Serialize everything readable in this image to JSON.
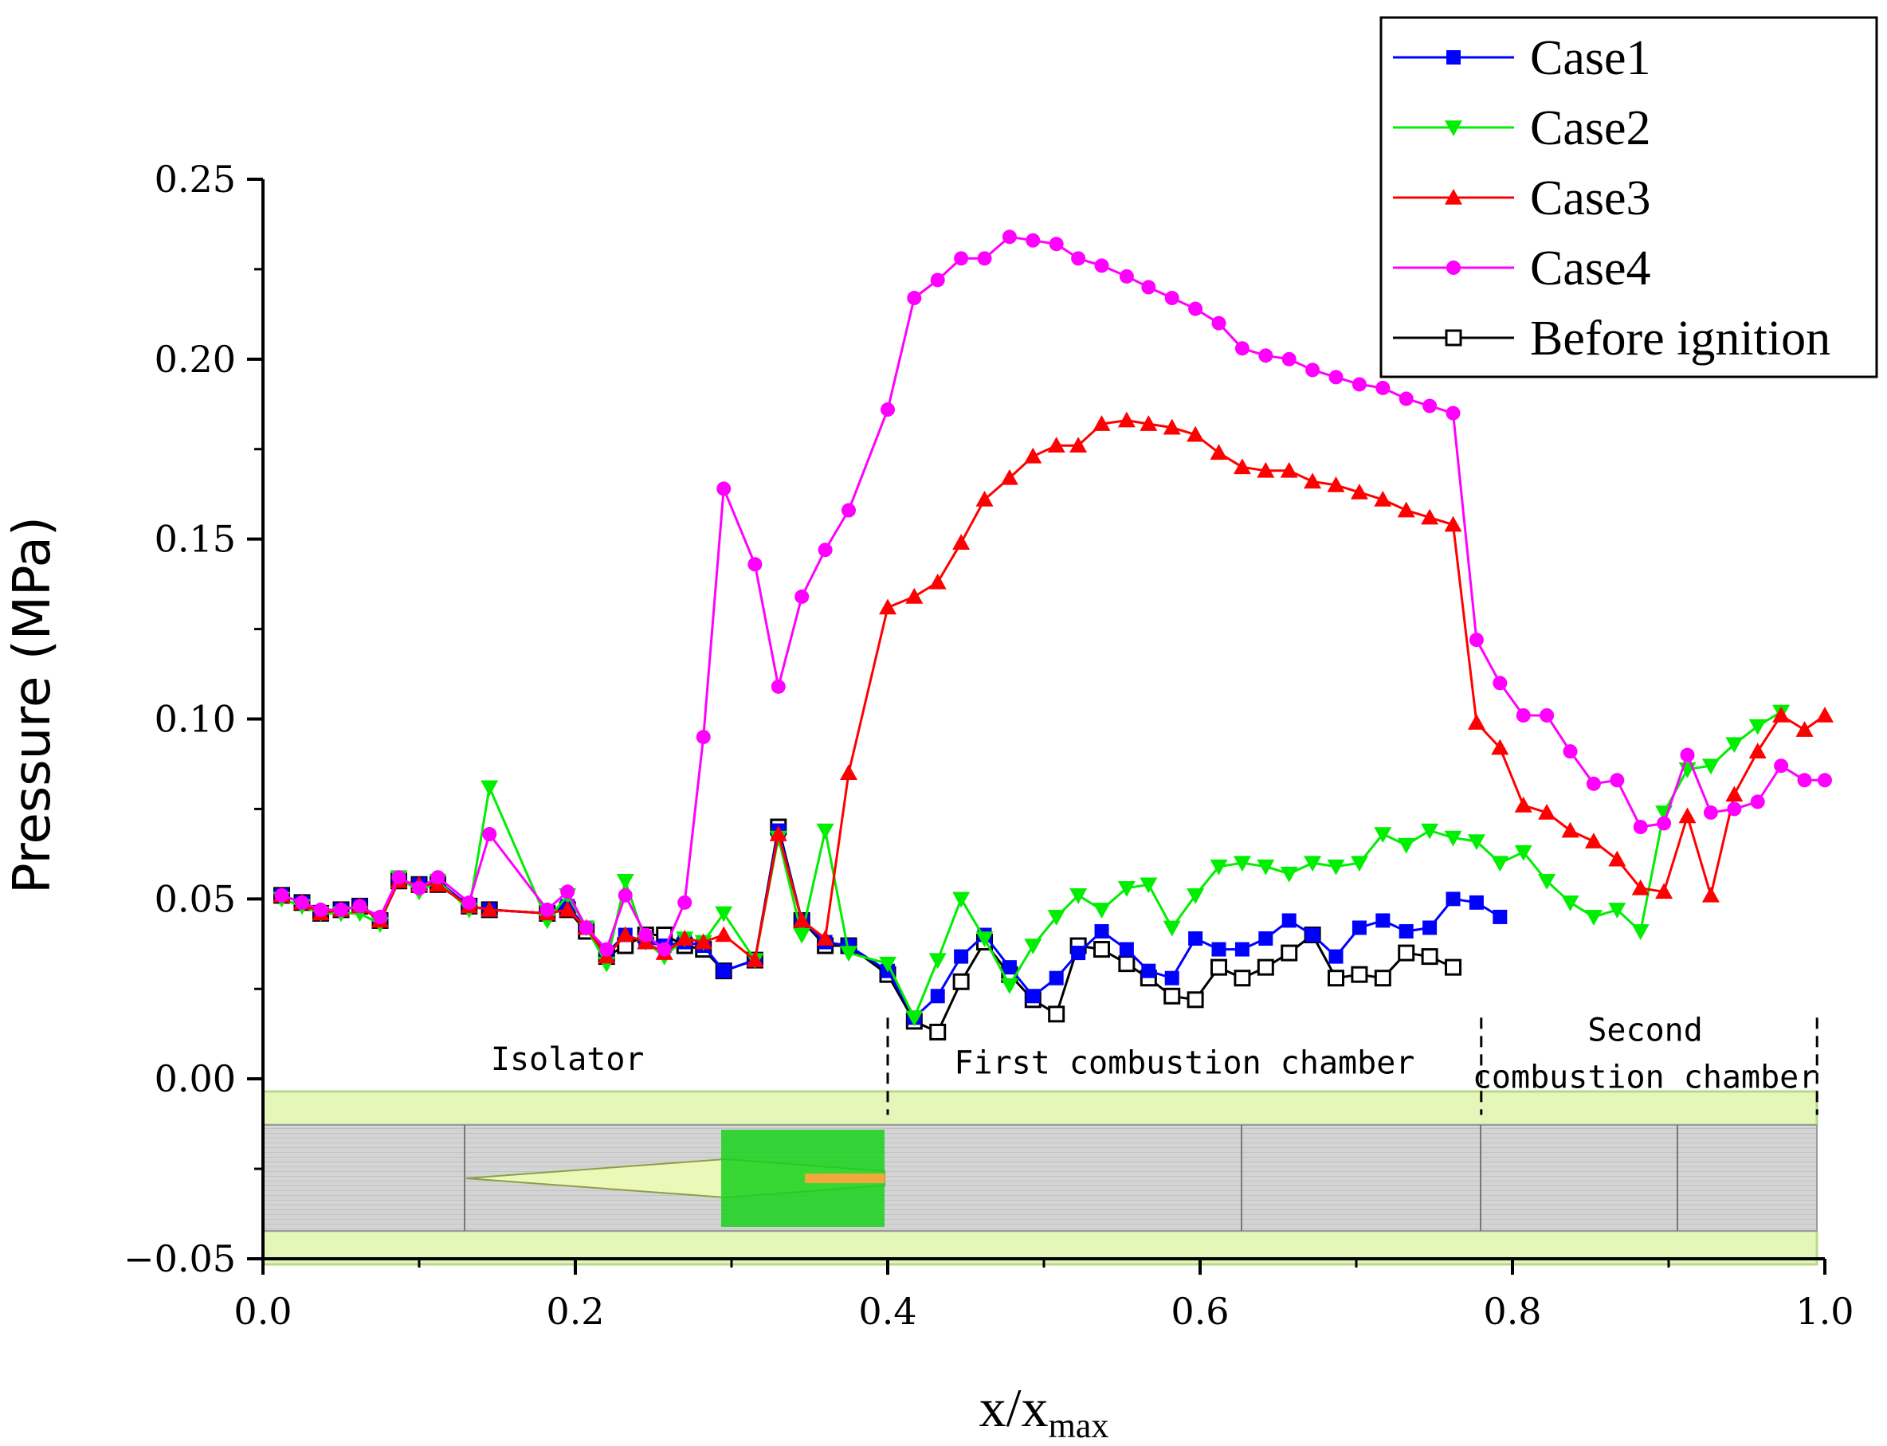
{
  "chart_data": {
    "type": "line",
    "title": "",
    "xlabel": "x/x",
    "xlabel_subscript": "max",
    "ylabel": "Pressure (MPa)",
    "xlim": [
      0.0,
      1.0
    ],
    "ylim": [
      -0.05,
      0.25
    ],
    "x_ticks": [
      0.0,
      0.2,
      0.4,
      0.6,
      0.8,
      1.0
    ],
    "x_tick_labels": [
      "0.0",
      "0.2",
      "0.4",
      "0.6",
      "0.8",
      "1.0"
    ],
    "y_ticks": [
      -0.05,
      0.0,
      0.05,
      0.1,
      0.15,
      0.2,
      0.25
    ],
    "y_tick_labels": [
      "−0.05",
      "0.00",
      "0.05",
      "0.10",
      "0.15",
      "0.20",
      "0.25"
    ],
    "legend_position": "top-right",
    "section_boundaries": [
      0.4,
      0.78,
      0.995
    ],
    "section_labels": [
      {
        "text": "Isolator",
        "x": 0.195,
        "y": 0.0025
      },
      {
        "text": "First combustion chamber",
        "x": 0.59,
        "y": 0.0015
      },
      {
        "text": "Second",
        "x": 0.885,
        "y": 0.0105
      },
      {
        "text": "combustion chamber",
        "x": 0.885,
        "y": -0.0025
      }
    ],
    "series": [
      {
        "name": "Before ignition",
        "color": "#000000",
        "marker": "open-square",
        "x": [
          0.012,
          0.025,
          0.037,
          0.05,
          0.062,
          0.075,
          0.087,
          0.1,
          0.112,
          0.132,
          0.145,
          0.182,
          0.195,
          0.207,
          0.22,
          0.232,
          0.245,
          0.257,
          0.27,
          0.282,
          0.295,
          0.315,
          0.33,
          0.345,
          0.36,
          0.375,
          0.4,
          0.417,
          0.432,
          0.447,
          0.462,
          0.478,
          0.493,
          0.508,
          0.522,
          0.537,
          0.553,
          0.567,
          0.582,
          0.597,
          0.612,
          0.627,
          0.642,
          0.657,
          0.672,
          0.687,
          0.702,
          0.717,
          0.732,
          0.747,
          0.762
        ],
        "values": [
          0.051,
          0.049,
          0.046,
          0.047,
          0.048,
          0.044,
          0.055,
          0.054,
          0.054,
          0.048,
          0.047,
          0.046,
          0.047,
          0.041,
          0.034,
          0.037,
          0.04,
          0.04,
          0.037,
          0.036,
          0.03,
          0.033,
          0.07,
          0.044,
          0.037,
          0.037,
          0.029,
          0.016,
          0.013,
          0.027,
          0.038,
          0.029,
          0.022,
          0.018,
          0.037,
          0.036,
          0.032,
          0.028,
          0.023,
          0.022,
          0.031,
          0.028,
          0.031,
          0.035,
          0.04,
          0.028,
          0.029,
          0.028,
          0.035,
          0.034,
          0.031
        ]
      },
      {
        "name": "Case1",
        "color": "#0000ff",
        "marker": "square",
        "x": [
          0.012,
          0.025,
          0.037,
          0.05,
          0.062,
          0.075,
          0.087,
          0.1,
          0.112,
          0.132,
          0.145,
          0.182,
          0.195,
          0.207,
          0.22,
          0.232,
          0.245,
          0.257,
          0.27,
          0.282,
          0.295,
          0.315,
          0.33,
          0.345,
          0.36,
          0.375,
          0.4,
          0.417,
          0.432,
          0.447,
          0.462,
          0.478,
          0.493,
          0.508,
          0.522,
          0.537,
          0.553,
          0.567,
          0.582,
          0.597,
          0.612,
          0.627,
          0.642,
          0.657,
          0.672,
          0.687,
          0.702,
          0.717,
          0.732,
          0.747,
          0.762,
          0.777,
          0.792
        ],
        "values": [
          0.051,
          0.049,
          0.046,
          0.047,
          0.048,
          0.044,
          0.055,
          0.054,
          0.055,
          0.048,
          0.047,
          0.046,
          0.048,
          0.042,
          0.035,
          0.04,
          0.038,
          0.037,
          0.038,
          0.037,
          0.03,
          0.033,
          0.069,
          0.044,
          0.038,
          0.037,
          0.03,
          0.017,
          0.023,
          0.034,
          0.04,
          0.031,
          0.023,
          0.028,
          0.035,
          0.041,
          0.036,
          0.03,
          0.028,
          0.039,
          0.036,
          0.036,
          0.039,
          0.044,
          0.04,
          0.034,
          0.042,
          0.044,
          0.041,
          0.042,
          0.05,
          0.049,
          0.045
        ]
      },
      {
        "name": "Case2",
        "color": "#00ee00",
        "marker": "triangle-down",
        "x": [
          0.012,
          0.025,
          0.037,
          0.05,
          0.062,
          0.075,
          0.087,
          0.1,
          0.112,
          0.132,
          0.145,
          0.182,
          0.195,
          0.207,
          0.22,
          0.232,
          0.245,
          0.257,
          0.27,
          0.282,
          0.295,
          0.315,
          0.33,
          0.345,
          0.36,
          0.375,
          0.4,
          0.417,
          0.432,
          0.447,
          0.462,
          0.478,
          0.493,
          0.508,
          0.522,
          0.537,
          0.553,
          0.567,
          0.582,
          0.597,
          0.612,
          0.627,
          0.642,
          0.657,
          0.672,
          0.687,
          0.702,
          0.717,
          0.732,
          0.747,
          0.762,
          0.777,
          0.792,
          0.807,
          0.822,
          0.837,
          0.852,
          0.867,
          0.882,
          0.897,
          0.912,
          0.927,
          0.942,
          0.957,
          0.972
        ],
        "values": [
          0.05,
          0.048,
          0.046,
          0.046,
          0.046,
          0.043,
          0.056,
          0.052,
          0.055,
          0.047,
          0.081,
          0.044,
          0.051,
          0.042,
          0.032,
          0.055,
          0.038,
          0.034,
          0.039,
          0.038,
          0.046,
          0.033,
          0.067,
          0.04,
          0.069,
          0.035,
          0.032,
          0.017,
          0.033,
          0.05,
          0.039,
          0.026,
          0.037,
          0.045,
          0.051,
          0.047,
          0.053,
          0.054,
          0.042,
          0.051,
          0.059,
          0.06,
          0.059,
          0.057,
          0.06,
          0.059,
          0.06,
          0.068,
          0.065,
          0.069,
          0.067,
          0.066,
          0.06,
          0.063,
          0.055,
          0.049,
          0.045,
          0.047,
          0.041,
          0.074,
          0.086,
          0.087,
          0.093,
          0.098,
          0.102
        ]
      },
      {
        "name": "Case3",
        "color": "#ff0000",
        "marker": "triangle-up",
        "x": [
          0.012,
          0.025,
          0.037,
          0.05,
          0.062,
          0.075,
          0.087,
          0.1,
          0.112,
          0.132,
          0.145,
          0.182,
          0.195,
          0.207,
          0.22,
          0.232,
          0.245,
          0.257,
          0.27,
          0.282,
          0.295,
          0.315,
          0.33,
          0.345,
          0.36,
          0.375,
          0.4,
          0.417,
          0.432,
          0.447,
          0.462,
          0.478,
          0.493,
          0.508,
          0.522,
          0.537,
          0.553,
          0.567,
          0.582,
          0.597,
          0.612,
          0.627,
          0.642,
          0.657,
          0.672,
          0.687,
          0.702,
          0.717,
          0.732,
          0.747,
          0.762,
          0.777,
          0.792,
          0.807,
          0.822,
          0.837,
          0.852,
          0.867,
          0.882,
          0.897,
          0.912,
          0.927,
          0.942,
          0.957,
          0.972,
          0.987,
          1.0
        ],
        "values": [
          0.051,
          0.049,
          0.046,
          0.047,
          0.048,
          0.044,
          0.055,
          0.054,
          0.054,
          0.048,
          0.047,
          0.046,
          0.047,
          0.042,
          0.034,
          0.04,
          0.038,
          0.035,
          0.039,
          0.038,
          0.04,
          0.033,
          0.068,
          0.044,
          0.039,
          0.085,
          0.131,
          0.134,
          0.138,
          0.149,
          0.161,
          0.167,
          0.173,
          0.176,
          0.176,
          0.182,
          0.183,
          0.182,
          0.181,
          0.179,
          0.174,
          0.17,
          0.169,
          0.169,
          0.166,
          0.165,
          0.163,
          0.161,
          0.158,
          0.156,
          0.154,
          0.099,
          0.092,
          0.076,
          0.074,
          0.069,
          0.066,
          0.061,
          0.053,
          0.052,
          0.073,
          0.051,
          0.079,
          0.091,
          0.101,
          0.097,
          0.101
        ]
      },
      {
        "name": "Case4",
        "color": "#ff00ff",
        "marker": "circle",
        "x": [
          0.012,
          0.025,
          0.037,
          0.05,
          0.062,
          0.075,
          0.087,
          0.1,
          0.112,
          0.132,
          0.145,
          0.182,
          0.195,
          0.207,
          0.22,
          0.232,
          0.245,
          0.257,
          0.27,
          0.282,
          0.295,
          0.315,
          0.33,
          0.345,
          0.36,
          0.375,
          0.4,
          0.417,
          0.432,
          0.447,
          0.462,
          0.478,
          0.493,
          0.508,
          0.522,
          0.537,
          0.553,
          0.567,
          0.582,
          0.597,
          0.612,
          0.627,
          0.642,
          0.657,
          0.672,
          0.687,
          0.702,
          0.717,
          0.732,
          0.747,
          0.762,
          0.777,
          0.792,
          0.807,
          0.822,
          0.837,
          0.852,
          0.867,
          0.882,
          0.897,
          0.912,
          0.927,
          0.942,
          0.957,
          0.972,
          0.987,
          1.0
        ],
        "values": [
          0.051,
          0.049,
          0.047,
          0.047,
          0.048,
          0.045,
          0.056,
          0.053,
          0.056,
          0.049,
          0.068,
          0.047,
          0.052,
          0.042,
          0.036,
          0.051,
          0.04,
          0.036,
          0.049,
          0.095,
          0.164,
          0.143,
          0.109,
          0.134,
          0.147,
          0.158,
          0.186,
          0.217,
          0.222,
          0.228,
          0.228,
          0.234,
          0.233,
          0.232,
          0.228,
          0.226,
          0.223,
          0.22,
          0.217,
          0.214,
          0.21,
          0.203,
          0.201,
          0.2,
          0.197,
          0.195,
          0.193,
          0.192,
          0.189,
          0.187,
          0.185,
          0.122,
          0.11,
          0.101,
          0.101,
          0.091,
          0.082,
          0.083,
          0.07,
          0.071,
          0.09,
          0.074,
          0.075,
          0.077,
          0.087,
          0.083,
          0.083
        ]
      }
    ]
  }
}
